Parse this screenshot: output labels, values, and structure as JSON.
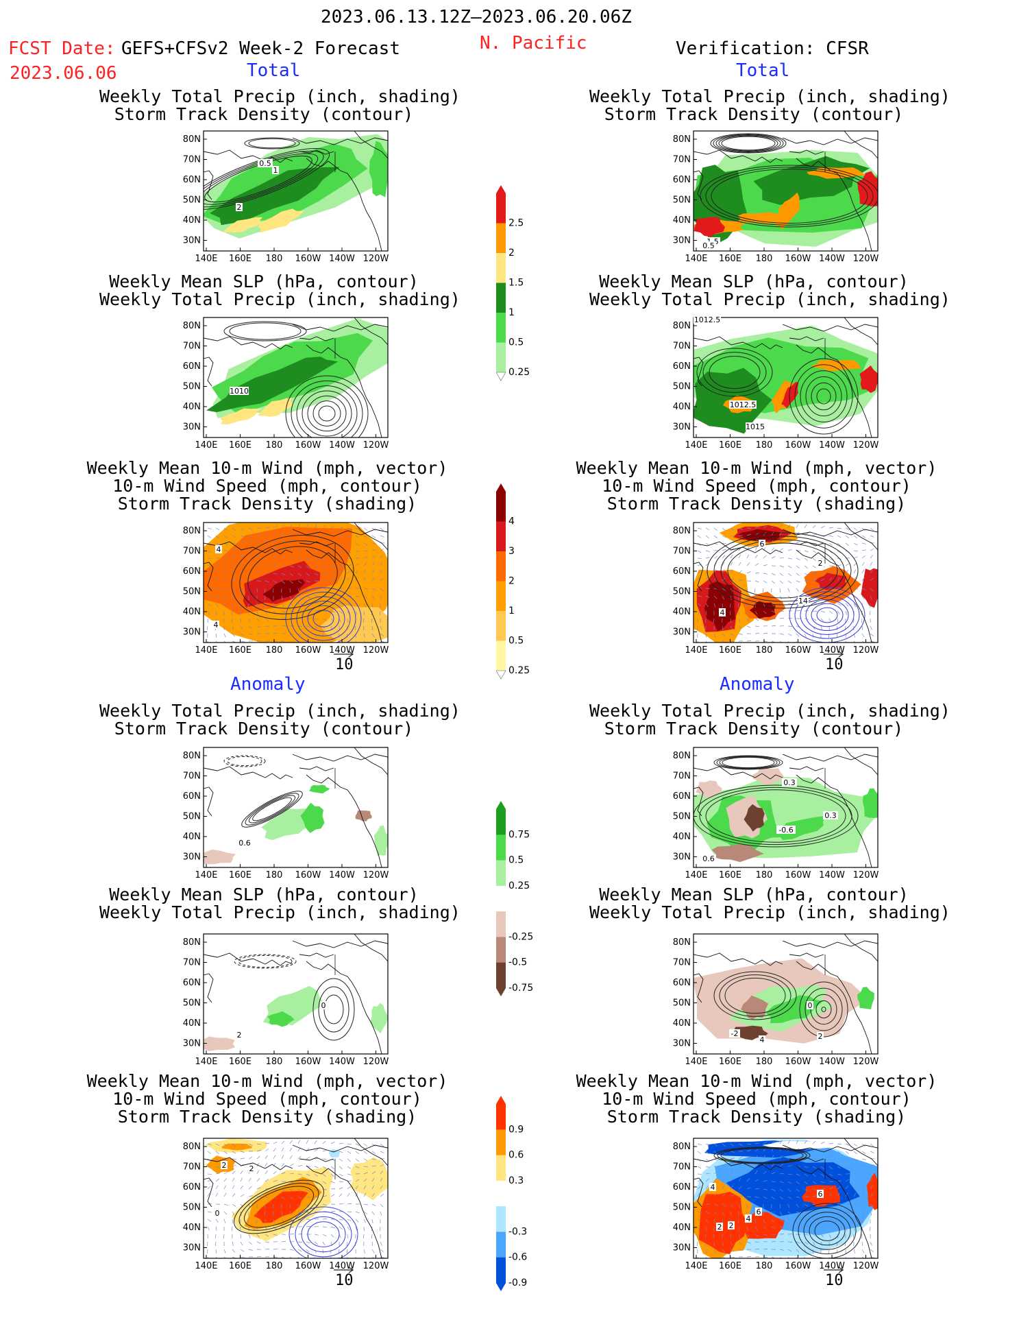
{
  "header": {
    "period": "2023.06.13.12Z–2023.06.20.06Z",
    "fcst_label": "FCST Date:",
    "fcst_model": "GEFS+CFSv2 Week-2 Forecast",
    "fcst_date": "2023.06.06",
    "region": "N. Pacific",
    "verification": "Verification: CFSR"
  },
  "sections": {
    "total": "Total",
    "anomaly": "Anomaly"
  },
  "titles": {
    "p1": [
      "Weekly Total Precip (inch, shading)",
      "Storm Track Density (contour)"
    ],
    "p2": [
      "Weekly Mean SLP (hPa, contour)",
      "Weekly Total Precip (inch, shading)"
    ],
    "p3": [
      "Weekly Mean 10-m Wind (mph, vector)",
      "10-m Wind Speed (mph, contour)",
      "Storm Track Density (shading)"
    ]
  },
  "axes": {
    "lat_labels": [
      "80N",
      "70N",
      "60N",
      "50N",
      "40N",
      "30N"
    ],
    "lon_labels": [
      "140E",
      "160E",
      "180",
      "160W",
      "140W",
      "120W"
    ]
  },
  "vector_reference": "10",
  "colorbars": {
    "precip_total": {
      "labels": [
        "2.5",
        "2",
        "1.5",
        "1",
        "0.5",
        "0.25"
      ],
      "colors": [
        "#e31a1c",
        "#ff9900",
        "#ffe680",
        "#1e8c1e",
        "#4cd94c",
        "#a8f0a0"
      ]
    },
    "storm_total": {
      "labels": [
        "4",
        "3",
        "2",
        "1",
        "0.5",
        "0.25"
      ],
      "colors": [
        "#8b0000",
        "#d7191c",
        "#ff6a00",
        "#ffa000",
        "#ffc850",
        "#fff6a0"
      ]
    },
    "precip_anom": {
      "labels": [
        "0.75",
        "0.5",
        "0.25",
        "-0.25",
        "-0.5",
        "-0.75"
      ],
      "colors": [
        "#1e9e1e",
        "#4cd94c",
        "#a8f0a0",
        "#ffffff",
        "#e8c8bc",
        "#b88878",
        "#6e4030"
      ]
    },
    "storm_anom": {
      "labels": [
        "0.9",
        "0.6",
        "0.3",
        "-0.3",
        "-0.6",
        "-0.9"
      ],
      "colors": [
        "#ff3300",
        "#ff9900",
        "#ffe680",
        "#ffffff",
        "#aee6ff",
        "#4aa6ff",
        "#0050dc"
      ]
    }
  },
  "panels": {
    "lt1": {
      "contour_labels": [
        "0.5",
        "1",
        "2"
      ]
    },
    "rt1": {
      "contour_labels": [
        "1.5",
        "0.5"
      ]
    },
    "lt2": {
      "contour_labels": [
        "1010"
      ]
    },
    "rt2": {
      "contour_labels": [
        "1012.5",
        "1015",
        "1012.5"
      ]
    },
    "lt3": {
      "contour_labels": [
        "4",
        "4"
      ]
    },
    "rt3": {
      "contour_labels": [
        "6",
        "2",
        "4",
        "14"
      ]
    },
    "la1": {
      "contour_labels": [
        "0.6"
      ]
    },
    "ra1": {
      "contour_labels": [
        "0.3",
        "0.3",
        "-0.6",
        "0.6"
      ]
    },
    "la2": {
      "contour_labels": [
        "2",
        "0"
      ]
    },
    "ra2": {
      "contour_labels": [
        "0",
        "-2",
        "4",
        "2"
      ]
    },
    "la3": {
      "contour_labels": [
        "2",
        "2",
        "0"
      ]
    },
    "ra3": {
      "contour_labels": [
        "4",
        "6",
        "4",
        "2",
        "2",
        "6"
      ]
    }
  },
  "colors": {
    "red_text": "#ff2020",
    "blue_text": "#1a2cff",
    "contour_black": "#222222",
    "contour_blue": "#3a3adc"
  }
}
